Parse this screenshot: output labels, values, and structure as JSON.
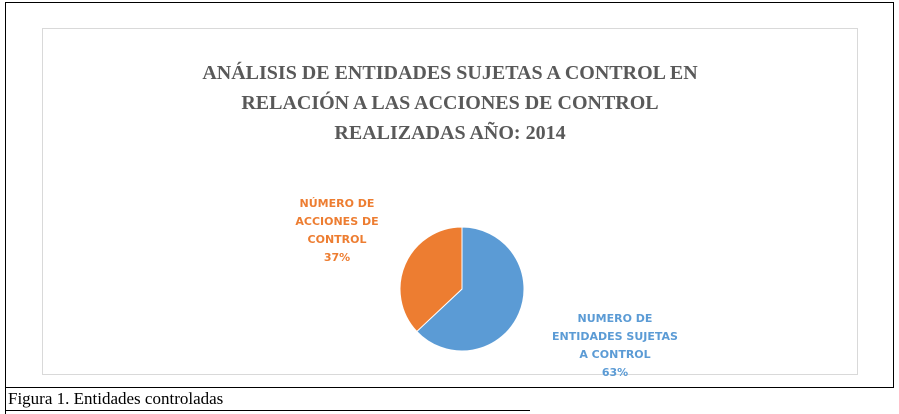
{
  "chart_data": {
    "type": "pie",
    "title": [
      "ANÁLISIS DE ENTIDADES SUJETAS A CONTROL EN",
      "RELACIÓN  A LAS ACCIONES DE CONTROL",
      "REALIZADAS  AÑO: 2014"
    ],
    "categories": [
      "NUMERO DE ENTIDADES SUJETAS A CONTROL",
      "NÚMERO DE ACCIONES DE CONTROL"
    ],
    "values": [
      63,
      37
    ],
    "value_labels": [
      "63%",
      "37%"
    ],
    "colors": [
      "#5b9bd5",
      "#ed7d31"
    ]
  },
  "caption": "Figura 1. Entidades controladas"
}
